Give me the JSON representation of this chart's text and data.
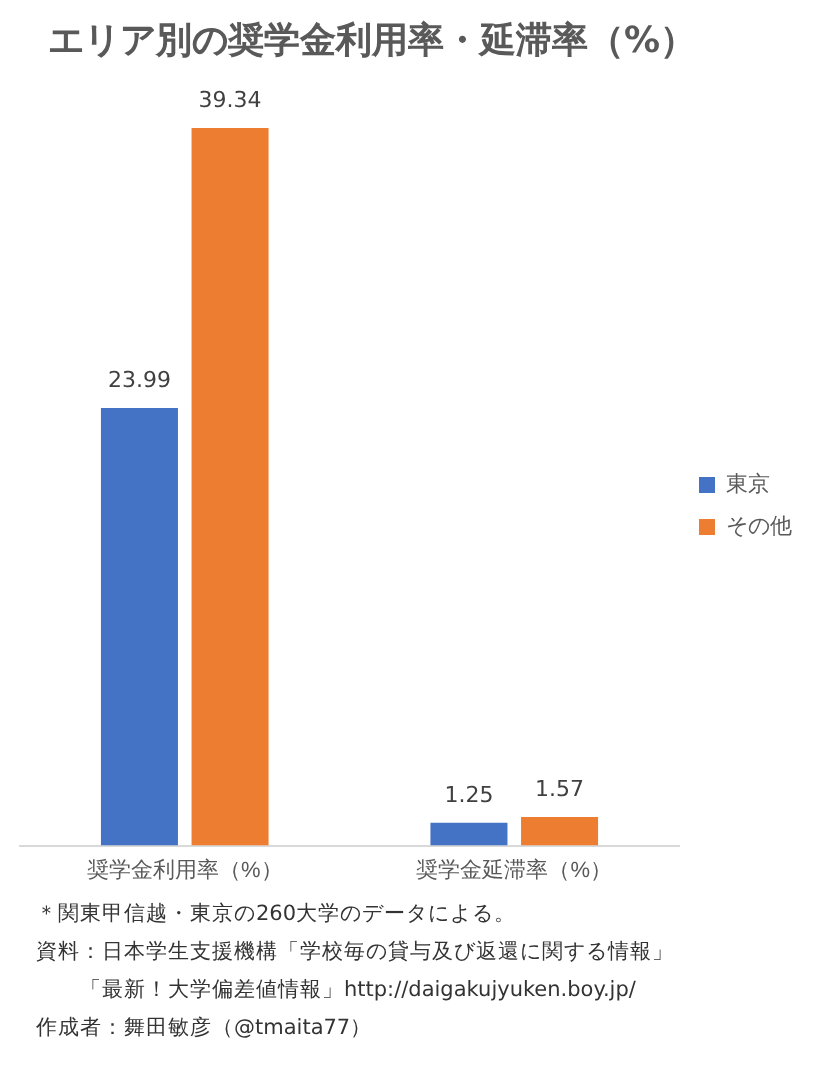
{
  "chart_data": {
    "type": "bar",
    "title": "エリア別の奨学金利用率・延滞率（%）",
    "categories": [
      "奨学金利用率（%）",
      "奨学金延滞率（%）"
    ],
    "series": [
      {
        "name": "東京",
        "color": "#4472c4",
        "values": [
          23.99,
          1.25
        ]
      },
      {
        "name": "その他",
        "color": "#ed7d31",
        "values": [
          39.34,
          1.57
        ]
      }
    ],
    "data_labels": true,
    "legend": "right",
    "grid": false,
    "annotations": [
      "＊関東甲信越・東京の260大学のデータによる。",
      "資料：日本学生支援機構「学校毎の貸与及び返還に関する情報」",
      "　　「最新！大学偏差値情報」http://daigakujyuken.boy.jp/",
      "作成者：舞田敏彦（@tmaita77）"
    ]
  }
}
